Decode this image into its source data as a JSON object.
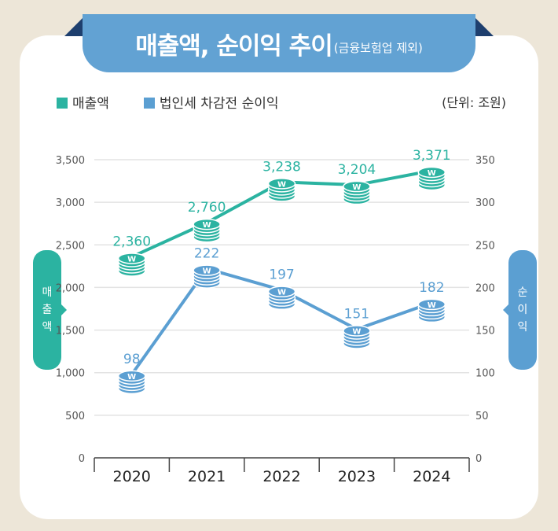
{
  "title": "매출액, 순이익 추이",
  "subtitle": "(금융보험업 제외)",
  "unit": "(단위: 조원)",
  "left_axis_label": [
    "매",
    "출",
    "액"
  ],
  "right_axis_label": [
    "순",
    "이",
    "익"
  ],
  "colors": {
    "revenue": "#2bb3a1",
    "profit": "#5b9fd2",
    "banner": "#62a2d3"
  },
  "chart_data": {
    "type": "line",
    "categories": [
      "2020",
      "2021",
      "2022",
      "2023",
      "2024"
    ],
    "series": [
      {
        "name": "매출액",
        "axis": "left",
        "values": [
          2360,
          2760,
          3238,
          3204,
          3371
        ],
        "labels": [
          "2,360",
          "2,760",
          "3,238",
          "3,204",
          "3,371"
        ]
      },
      {
        "name": "법인세 차감전 순이익",
        "axis": "right",
        "values": [
          98,
          222,
          197,
          151,
          182
        ],
        "labels": [
          "98",
          "222",
          "197",
          "151",
          "182"
        ]
      }
    ],
    "y_left": {
      "lim": [
        0,
        3500
      ],
      "ticks": [
        "0",
        "500",
        "1,000",
        "1,500",
        "2,000",
        "2,500",
        "3,000",
        "3,500"
      ]
    },
    "y_right": {
      "lim": [
        0,
        350
      ],
      "ticks": [
        "0",
        "50",
        "100",
        "150",
        "200",
        "250",
        "300",
        "350"
      ]
    },
    "grid": true,
    "legend": "top-left",
    "marker": "coin-stack-icon"
  }
}
